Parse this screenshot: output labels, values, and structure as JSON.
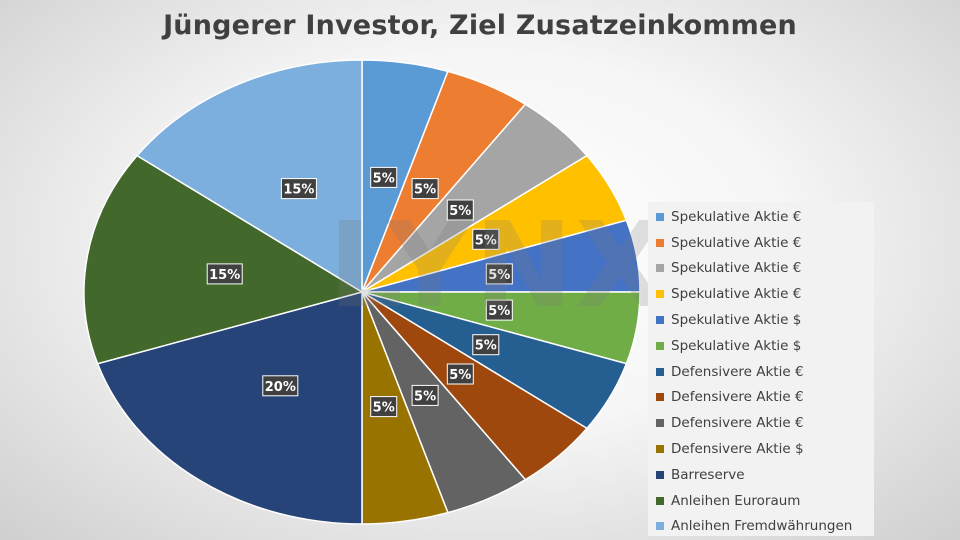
{
  "chart_data": {
    "type": "pie",
    "title": "Jüngerer Investor, Ziel Zusatzeinkommen",
    "slices": [
      {
        "label": "Spekulative Aktie €",
        "value": 5,
        "color": "#5B9BD5"
      },
      {
        "label": "Spekulative Aktie €",
        "value": 5,
        "color": "#ED7D31"
      },
      {
        "label": "Spekulative Aktie €",
        "value": 5,
        "color": "#A5A5A5"
      },
      {
        "label": "Spekulative Aktie €",
        "value": 5,
        "color": "#FFC000"
      },
      {
        "label": "Spekulative Aktie $",
        "value": 5,
        "color": "#4472C4"
      },
      {
        "label": "Spekulative Aktie $",
        "value": 5,
        "color": "#70AD47"
      },
      {
        "label": "Defensivere Aktie €",
        "value": 5,
        "color": "#255E91"
      },
      {
        "label": "Defensivere Aktie €",
        "value": 5,
        "color": "#9E480E"
      },
      {
        "label": "Defensivere Aktie €",
        "value": 5,
        "color": "#636363"
      },
      {
        "label": "Defensivere Aktie $",
        "value": 5,
        "color": "#997300"
      },
      {
        "label": "Barreserve",
        "value": 20,
        "color": "#264478"
      },
      {
        "label": "Anleihen Euroraum",
        "value": 15,
        "color": "#43682B"
      },
      {
        "label": "Anleihen Fremdwährungen",
        "value": 15,
        "color": "#7CAFDD"
      }
    ],
    "data_label_suffix": "%",
    "legend_position": "right"
  },
  "watermark": "LYNX"
}
